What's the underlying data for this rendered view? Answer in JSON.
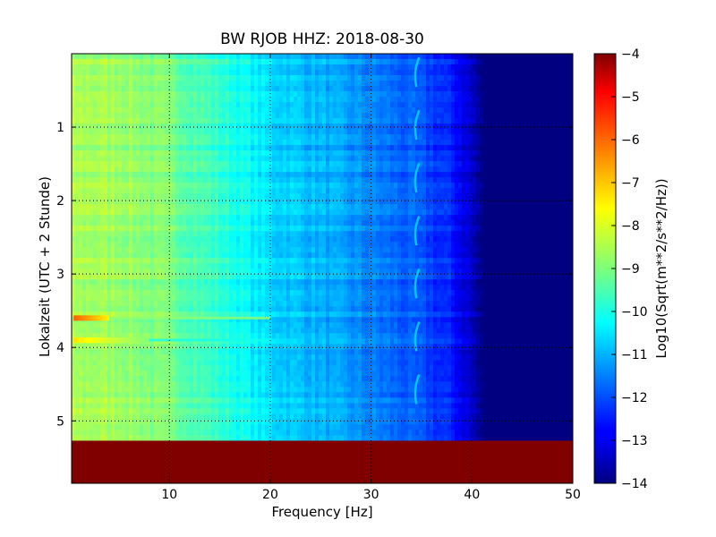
{
  "chart_data": {
    "type": "heatmap",
    "title": "BW RJOB HHZ: 2018-08-30",
    "xlabel": "Frequency [Hz]",
    "ylabel": "Lokalzeit (UTC + 2 Stunde)",
    "xlim": [
      0.3,
      50
    ],
    "ylim": [
      5.85,
      0
    ],
    "xticks": [
      10,
      20,
      30,
      40,
      50
    ],
    "yticks": [
      1,
      2,
      3,
      4,
      5
    ],
    "grid": true,
    "colorbar": {
      "label": "Log10(Sqrt(m**2/s**2/Hz))",
      "range": [
        -14,
        -4
      ],
      "ticks": [
        -4,
        -5,
        -6,
        -7,
        -8,
        -9,
        -10,
        -11,
        -12,
        -13,
        -14
      ],
      "tick_labels": [
        "−4",
        "−5",
        "−6",
        "−7",
        "−8",
        "−9",
        "−10",
        "−11",
        "−12",
        "−13",
        "−14"
      ],
      "colormap": "jet"
    },
    "spectral_profile": {
      "frequency_hz": [
        0.3,
        5,
        10,
        15,
        20,
        25,
        30,
        35,
        38,
        40,
        41,
        45,
        50
      ],
      "log10_amplitude": [
        -8.6,
        -8.7,
        -9.1,
        -9.8,
        -10.6,
        -11.0,
        -11.5,
        -12.0,
        -12.5,
        -13.3,
        -14.0,
        -14.0,
        -14.0
      ]
    },
    "features": [
      {
        "label": "strong band at ~3.6 h",
        "time_h": 3.6,
        "freq_range_hz": [
          0.5,
          4
        ],
        "value": -6.2
      },
      {
        "label": "band at ~3.9 h",
        "time_h": 3.9,
        "freq_range_hz": [
          0.5,
          8
        ],
        "value": -7.5
      },
      {
        "label": "no data",
        "time_range_h": [
          5.27,
          5.85
        ],
        "value": -4
      },
      {
        "label": "narrowband line",
        "freq_hz": 34.5,
        "value": -10.8
      }
    ]
  }
}
